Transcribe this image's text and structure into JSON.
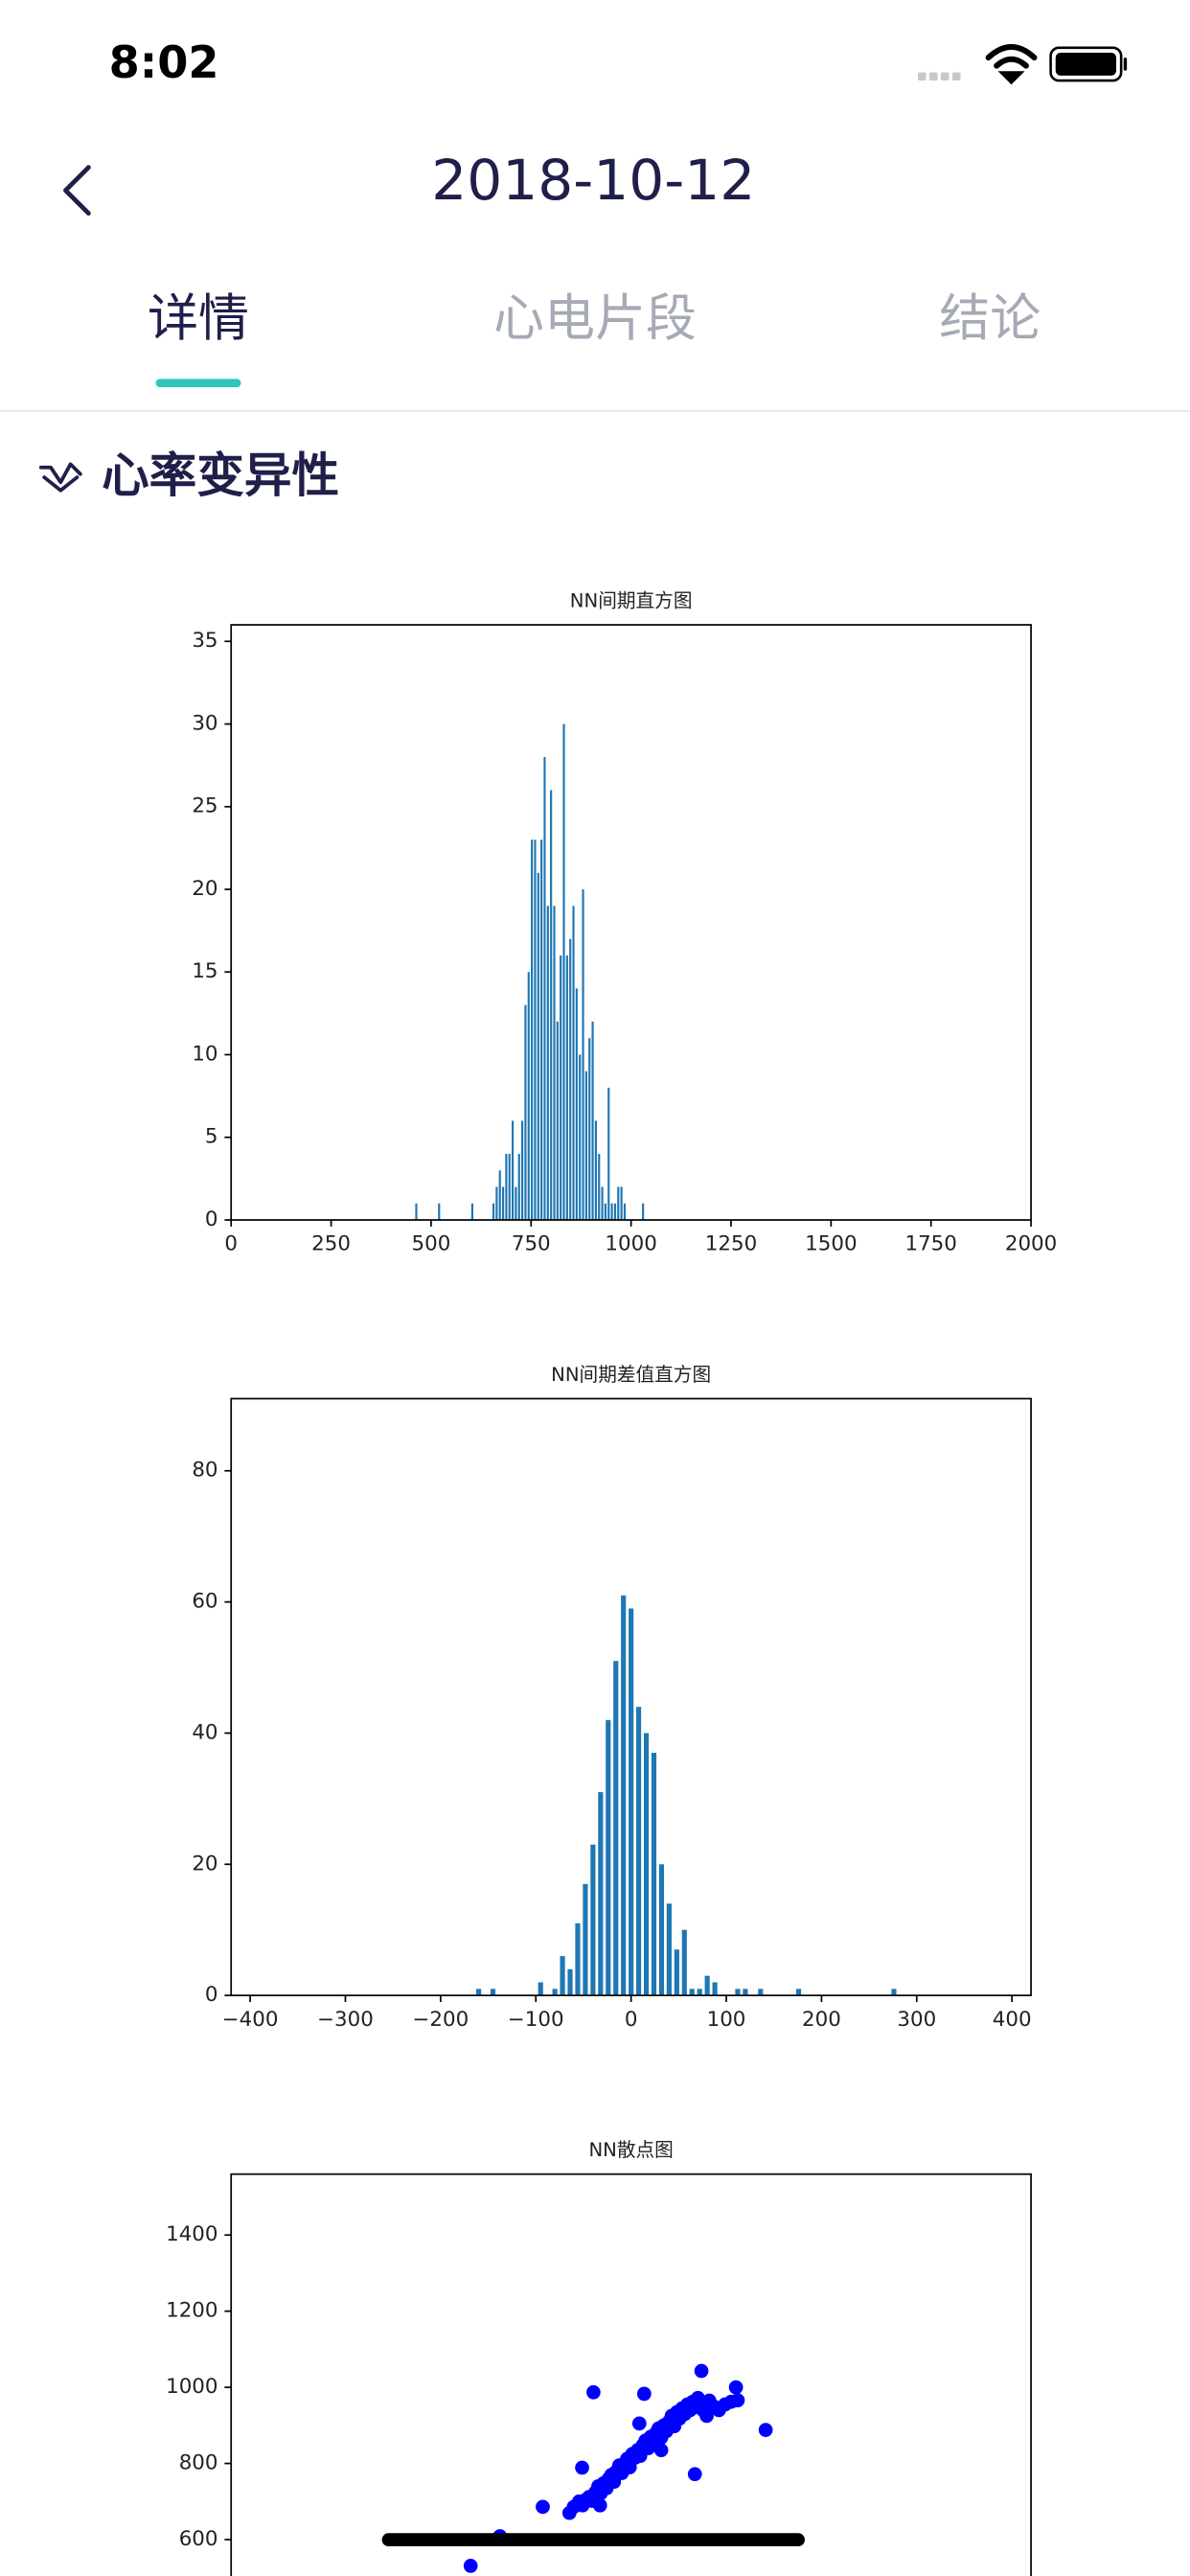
{
  "status_bar": {
    "time": "8:02"
  },
  "header": {
    "title": "2018-10-12"
  },
  "tabs": [
    "详情",
    "心电片段",
    "结论"
  ],
  "section": {
    "title": "心率变异性"
  },
  "chart_data": [
    {
      "type": "bar",
      "title": "NN间期直方图",
      "color": "#1f77b4",
      "x": [
        463,
        520,
        603,
        656,
        664,
        672,
        680,
        688,
        696,
        704,
        712,
        720,
        728,
        736,
        744,
        752,
        760,
        768,
        776,
        784,
        792,
        800,
        808,
        816,
        824,
        832,
        840,
        848,
        856,
        864,
        872,
        880,
        888,
        896,
        904,
        912,
        920,
        928,
        936,
        944,
        952,
        960,
        968,
        976,
        984,
        1030
      ],
      "values": [
        1,
        1,
        1,
        1,
        2,
        3,
        2,
        4,
        4,
        6,
        2,
        4,
        6,
        13,
        15,
        23,
        23,
        21,
        23,
        28,
        19,
        26,
        19,
        12,
        16,
        30,
        16,
        17,
        19,
        14,
        10,
        20,
        9,
        11,
        12,
        6,
        4,
        2,
        1,
        8,
        1,
        1,
        2,
        2,
        1,
        1
      ],
      "xlim": [
        0,
        2000
      ],
      "xticks": [
        0,
        250,
        500,
        750,
        1000,
        1250,
        1500,
        1750,
        2000
      ],
      "ylim": [
        0,
        36
      ],
      "yticks": [
        0,
        5,
        10,
        15,
        20,
        25,
        30,
        35
      ]
    },
    {
      "type": "bar",
      "title": "NN间期差值直方图",
      "color": "#1f77b4",
      "x": [
        -160,
        -145,
        -95,
        -80,
        -72,
        -64,
        -56,
        -48,
        -40,
        -32,
        -24,
        -16,
        -8,
        0,
        8,
        16,
        24,
        32,
        40,
        48,
        56,
        64,
        72,
        80,
        88,
        112,
        120,
        136,
        176,
        276
      ],
      "values": [
        1,
        1,
        2,
        1,
        6,
        4,
        11,
        17,
        23,
        31,
        42,
        51,
        61,
        59,
        44,
        40,
        37,
        20,
        14,
        7,
        10,
        1,
        1,
        3,
        2,
        1,
        1,
        1,
        1,
        1
      ],
      "xlim": [
        -420,
        420
      ],
      "xticks": [
        {
          "value": -400,
          "label": "−400"
        },
        {
          "value": -300,
          "label": "−300"
        },
        {
          "value": -200,
          "label": "−200"
        },
        {
          "value": -100,
          "label": "−100"
        },
        0,
        100,
        200,
        300,
        400
      ],
      "ylim": [
        0,
        91
      ],
      "yticks": [
        0,
        20,
        40,
        60,
        80
      ]
    },
    {
      "type": "scatter",
      "title": "NN散点图",
      "color": "#0000ff",
      "x": [
        700,
        712,
        720,
        728,
        735,
        742,
        750,
        756,
        762,
        768,
        775,
        780,
        786,
        792,
        798,
        804,
        810,
        816,
        822,
        828,
        834,
        840,
        846,
        852,
        858,
        864,
        870,
        876,
        882,
        888,
        894,
        900,
        906,
        912,
        918,
        924,
        930,
        936,
        942,
        948,
        954,
        960,
        966,
        972,
        978,
        984,
        990,
        996,
        1004,
        1010,
        1020,
        1032,
        1046,
        1060,
        1075,
        745,
        861,
        464,
        531,
        629,
        1139,
        992,
        1071,
        977,
        719,
        690,
        760,
        850,
        900
      ],
      "values": [
        686,
        700,
        690,
        705,
        712,
        702,
        725,
        740,
        722,
        748,
        735,
        760,
        770,
        752,
        780,
        795,
        775,
        800,
        812,
        790,
        825,
        815,
        835,
        820,
        848,
        860,
        840,
        870,
        855,
        880,
        892,
        868,
        900,
        885,
        910,
        925,
        898,
        935,
        918,
        945,
        930,
        955,
        940,
        962,
        948,
        972,
        958,
        940,
        925,
        965,
        950,
        940,
        955,
        962,
        966,
        987,
        983,
        531,
        609,
        686,
        888,
        1043,
        1000,
        772,
        789,
        670,
        690,
        905,
        835
      ],
      "xlim": [
        -84,
        1746
      ],
      "ylim": [
        380,
        1560
      ],
      "yticks": [
        600,
        800,
        1000,
        1200,
        1400
      ]
    }
  ]
}
